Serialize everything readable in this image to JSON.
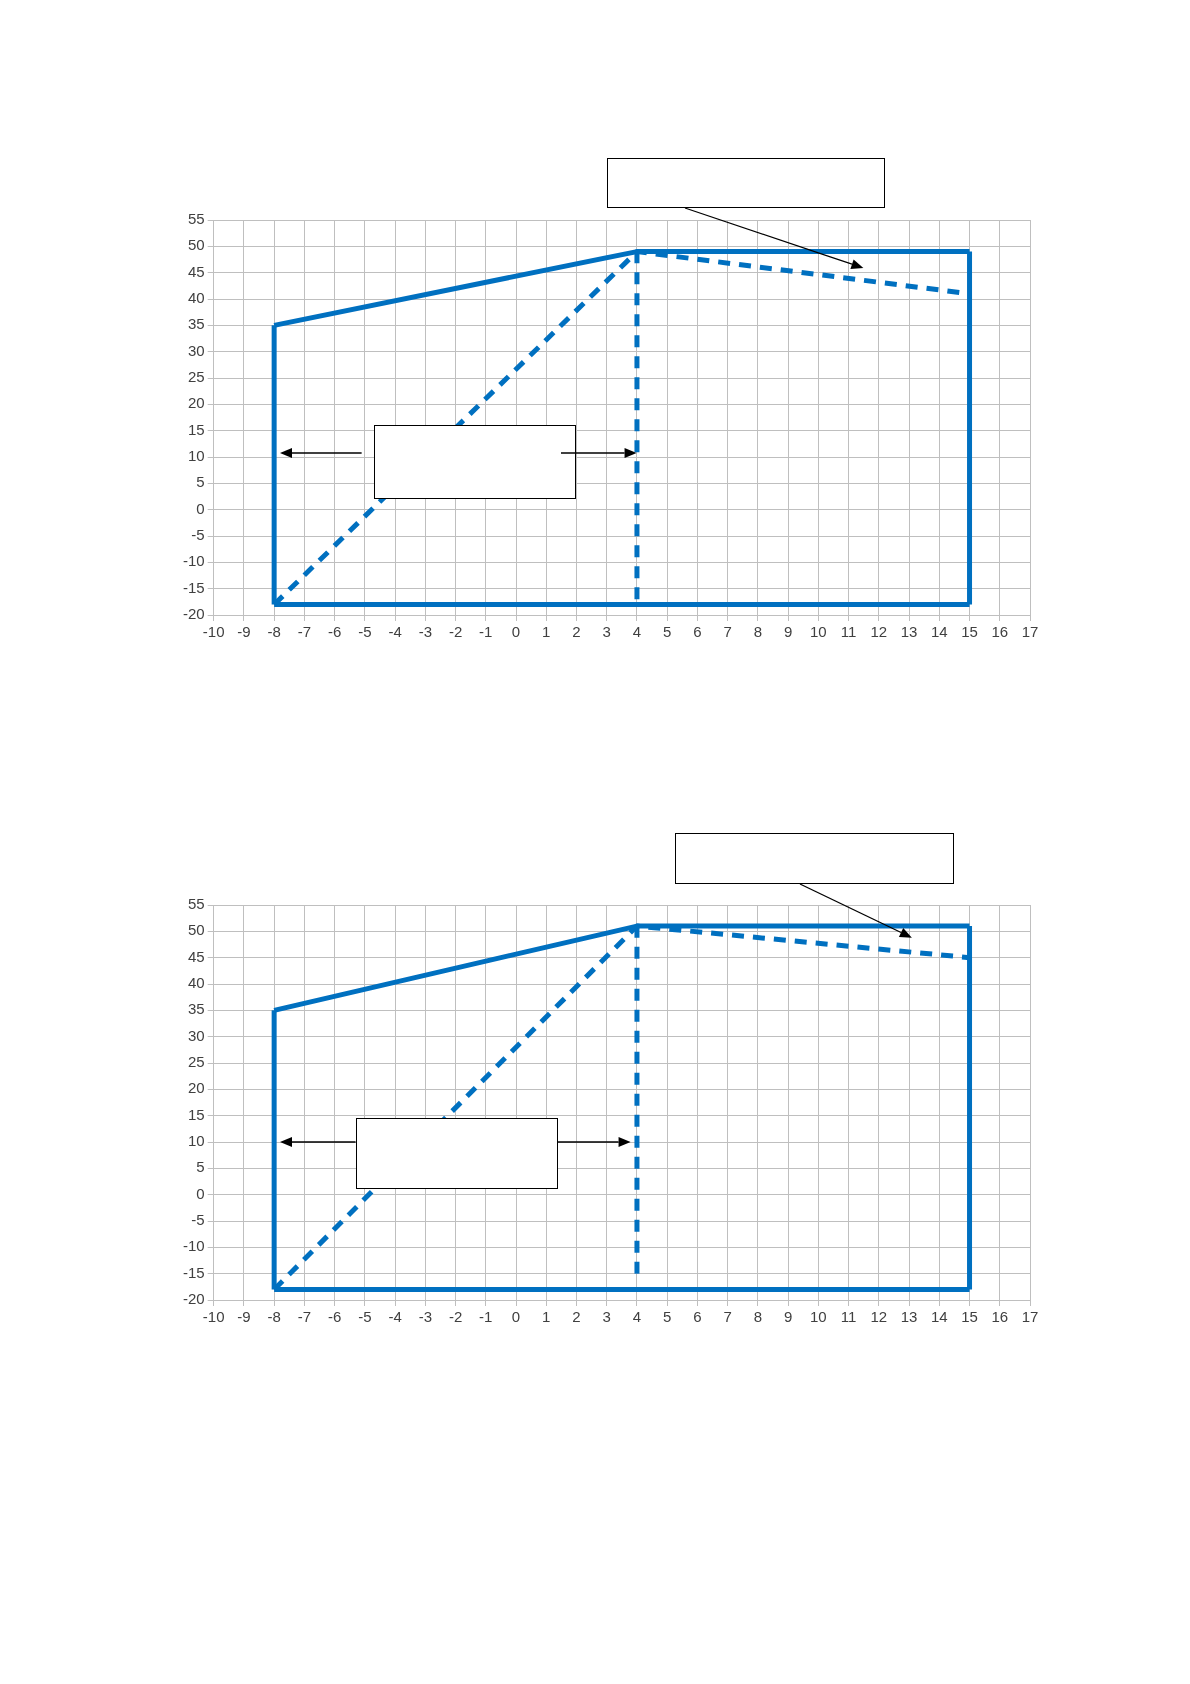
{
  "chart_data": [
    {
      "type": "line",
      "xlim": [
        -10,
        17
      ],
      "ylim": [
        -20,
        55
      ],
      "xticks": [
        -10,
        -9,
        -8,
        -7,
        -6,
        -5,
        -4,
        -3,
        -2,
        -1,
        0,
        1,
        2,
        3,
        4,
        5,
        6,
        7,
        8,
        9,
        10,
        11,
        12,
        13,
        14,
        15,
        16,
        17
      ],
      "yticks": [
        -20,
        -15,
        -10,
        -5,
        0,
        5,
        10,
        15,
        20,
        25,
        30,
        35,
        40,
        45,
        50,
        55
      ],
      "grid": true,
      "marker": "none",
      "series": [
        {
          "color": "#0070c0",
          "line_style": "solid",
          "x": [
            -8,
            4,
            15
          ],
          "values": [
            35,
            49,
            49
          ]
        },
        {
          "color": "#0070c0",
          "line_style": "solid",
          "x": [
            -8,
            15
          ],
          "values": [
            -18,
            -18
          ]
        },
        {
          "color": "#0070c0",
          "line_style": "solid",
          "x": [
            -8,
            -8
          ],
          "values": [
            -18,
            35
          ]
        },
        {
          "color": "#0070c0",
          "line_style": "solid",
          "x": [
            15,
            15
          ],
          "values": [
            -18,
            49
          ]
        },
        {
          "color": "#0070c0",
          "line_style": "dashed",
          "x": [
            -8,
            4,
            15
          ],
          "values": [
            -18,
            49,
            41
          ]
        },
        {
          "color": "#0070c0",
          "line_style": "dashed",
          "x": [
            4,
            4
          ],
          "values": [
            -17,
            49
          ]
        }
      ]
    },
    {
      "type": "line",
      "xlim": [
        -10,
        17
      ],
      "ylim": [
        -20,
        55
      ],
      "xticks": [
        -10,
        -9,
        -8,
        -7,
        -6,
        -5,
        -4,
        -3,
        -2,
        -1,
        0,
        1,
        2,
        3,
        4,
        5,
        6,
        7,
        8,
        9,
        10,
        11,
        12,
        13,
        14,
        15,
        16,
        17
      ],
      "yticks": [
        -20,
        -15,
        -10,
        -5,
        0,
        5,
        10,
        15,
        20,
        25,
        30,
        35,
        40,
        45,
        50,
        55
      ],
      "grid": true,
      "marker": "none",
      "series": [
        {
          "color": "#0070c0",
          "line_style": "solid",
          "x": [
            -8,
            4,
            15
          ],
          "values": [
            35,
            51,
            51
          ]
        },
        {
          "color": "#0070c0",
          "line_style": "solid",
          "x": [
            -8,
            15
          ],
          "values": [
            -18,
            -18
          ]
        },
        {
          "color": "#0070c0",
          "line_style": "solid",
          "x": [
            -8,
            -8
          ],
          "values": [
            -18,
            35
          ]
        },
        {
          "color": "#0070c0",
          "line_style": "solid",
          "x": [
            15,
            15
          ],
          "values": [
            -18,
            51
          ]
        },
        {
          "color": "#0070c0",
          "line_style": "dashed",
          "x": [
            -8,
            4,
            15
          ],
          "values": [
            -18,
            51,
            45
          ]
        },
        {
          "color": "#0070c0",
          "line_style": "dashed",
          "x": [
            4,
            4
          ],
          "values": [
            -15,
            51
          ]
        }
      ]
    }
  ]
}
